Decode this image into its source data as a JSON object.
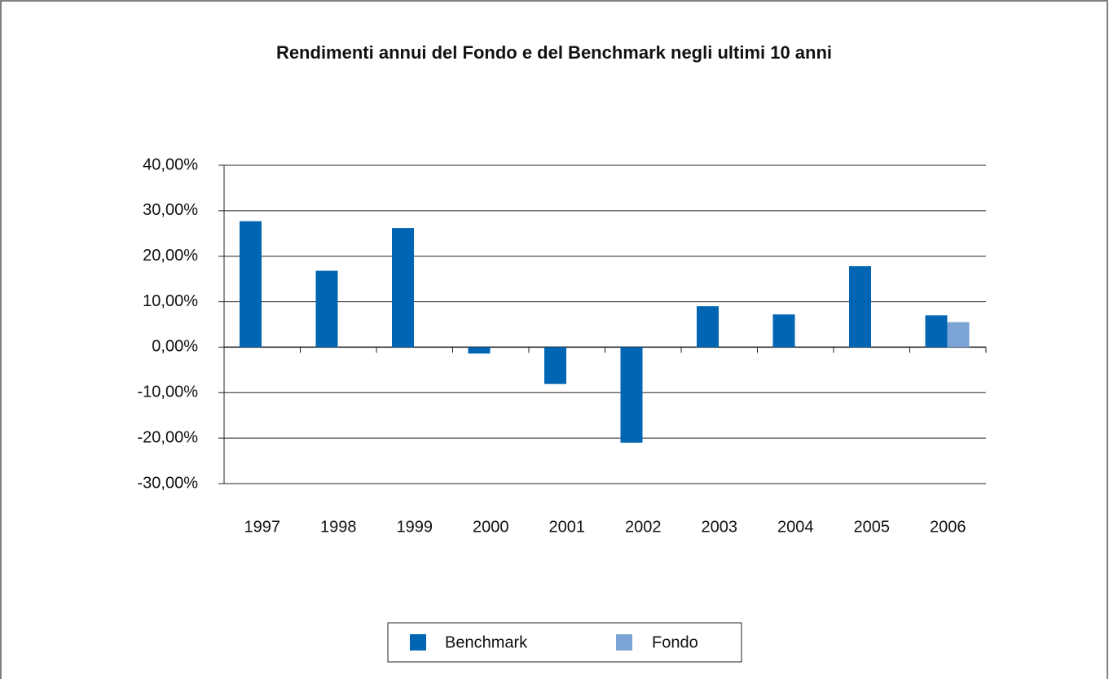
{
  "chart_data": {
    "type": "bar",
    "title": "Rendimenti annui del Fondo e del Benchmark negli ultimi 10 anni",
    "categories": [
      "1997",
      "1998",
      "1999",
      "2000",
      "2001",
      "2002",
      "2003",
      "2004",
      "2005",
      "2006"
    ],
    "series": [
      {
        "name": "Benchmark",
        "color": "#0066b3",
        "values": [
          27.7,
          16.8,
          26.2,
          -1.4,
          -8.1,
          -21.0,
          9.0,
          7.2,
          17.8,
          7.0
        ]
      },
      {
        "name": "Fondo",
        "color": "#7ba3d6",
        "values": [
          null,
          null,
          null,
          null,
          null,
          null,
          null,
          null,
          null,
          5.5
        ]
      }
    ],
    "ylim": [
      -30,
      40
    ],
    "yticks": [
      {
        "value": -30,
        "label": "-30,00%"
      },
      {
        "value": -20,
        "label": "-20,00%"
      },
      {
        "value": -10,
        "label": "-10,00%"
      },
      {
        "value": 0,
        "label": "0,00%"
      },
      {
        "value": 10,
        "label": "10,00%"
      },
      {
        "value": 20,
        "label": "20,00%"
      },
      {
        "value": 30,
        "label": "30,00%"
      },
      {
        "value": 40,
        "label": "40,00%"
      }
    ],
    "grid": true,
    "legend": "bottom"
  }
}
